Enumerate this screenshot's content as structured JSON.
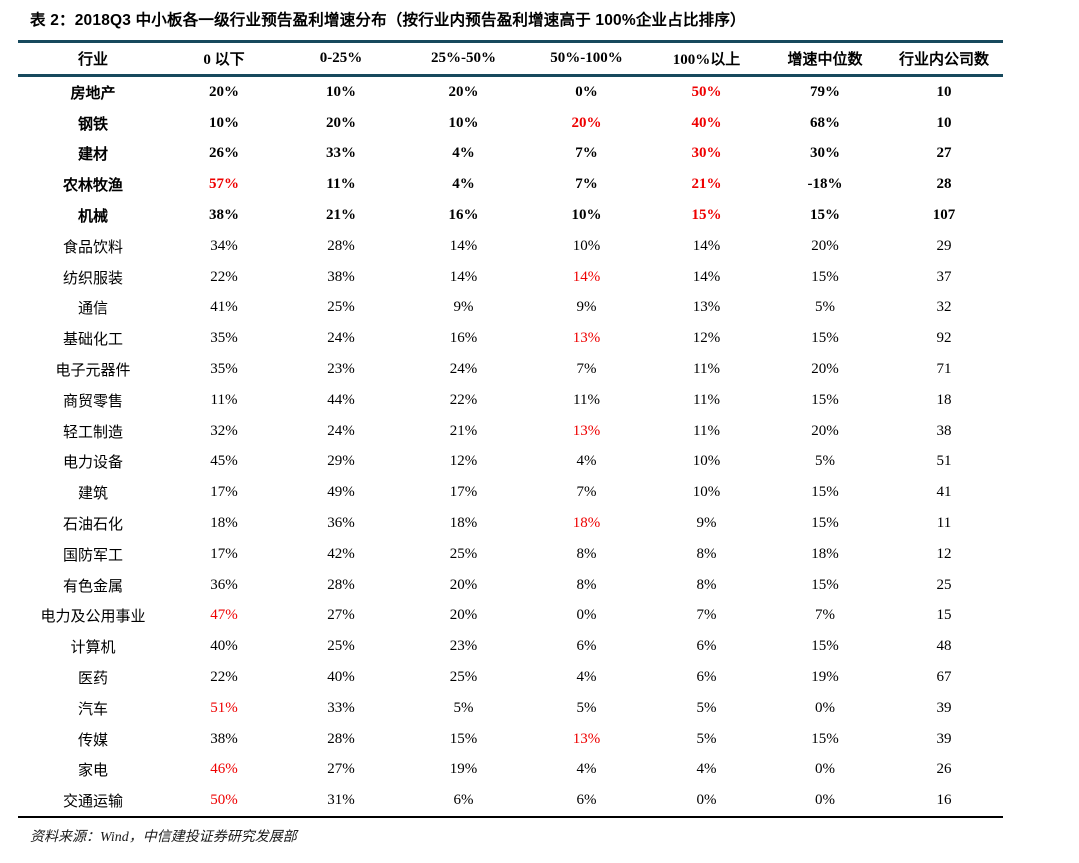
{
  "title": "表 2：2018Q3 中小板各一级行业预告盈利增速分布（按行业内预告盈利增速高于 100%企业占比排序）",
  "source": "资料来源：Wind，中信建投证券研究发展部",
  "colors": {
    "accent_line": "#17495d",
    "highlight_red": "#ee0000",
    "bottom_line": "#000000"
  },
  "chart_data": {
    "type": "table",
    "title": "2018Q3 中小板各一级行业预告盈利增速分布",
    "sort_note": "按行业内预告盈利增速高于 100%企业占比排序",
    "headers": [
      "行业",
      "0 以下",
      "0-25%",
      "25%-50%",
      "50%-100%",
      "100%以上",
      "增速中位数",
      "行业内公司数"
    ],
    "rows": [
      {
        "industry": "房地产",
        "values": [
          "20%",
          "10%",
          "20%",
          "0%",
          "50%",
          "79%",
          "10"
        ],
        "bold": true,
        "red": [
          4
        ]
      },
      {
        "industry": "钢铁",
        "values": [
          "10%",
          "20%",
          "10%",
          "20%",
          "40%",
          "68%",
          "10"
        ],
        "bold": true,
        "red": [
          3,
          4
        ]
      },
      {
        "industry": "建材",
        "values": [
          "26%",
          "33%",
          "4%",
          "7%",
          "30%",
          "30%",
          "27"
        ],
        "bold": true,
        "red": [
          4
        ]
      },
      {
        "industry": "农林牧渔",
        "values": [
          "57%",
          "11%",
          "4%",
          "7%",
          "21%",
          "-18%",
          "28"
        ],
        "bold": true,
        "red": [
          0,
          4
        ]
      },
      {
        "industry": "机械",
        "values": [
          "38%",
          "21%",
          "16%",
          "10%",
          "15%",
          "15%",
          "107"
        ],
        "bold": true,
        "red": [
          4
        ]
      },
      {
        "industry": "食品饮料",
        "values": [
          "34%",
          "28%",
          "14%",
          "10%",
          "14%",
          "20%",
          "29"
        ],
        "bold": false,
        "red": []
      },
      {
        "industry": "纺织服装",
        "values": [
          "22%",
          "38%",
          "14%",
          "14%",
          "14%",
          "15%",
          "37"
        ],
        "bold": false,
        "red": [
          3
        ]
      },
      {
        "industry": "通信",
        "values": [
          "41%",
          "25%",
          "9%",
          "9%",
          "13%",
          "5%",
          "32"
        ],
        "bold": false,
        "red": []
      },
      {
        "industry": "基础化工",
        "values": [
          "35%",
          "24%",
          "16%",
          "13%",
          "12%",
          "15%",
          "92"
        ],
        "bold": false,
        "red": [
          3
        ]
      },
      {
        "industry": "电子元器件",
        "values": [
          "35%",
          "23%",
          "24%",
          "7%",
          "11%",
          "20%",
          "71"
        ],
        "bold": false,
        "red": []
      },
      {
        "industry": "商贸零售",
        "values": [
          "11%",
          "44%",
          "22%",
          "11%",
          "11%",
          "15%",
          "18"
        ],
        "bold": false,
        "red": []
      },
      {
        "industry": "轻工制造",
        "values": [
          "32%",
          "24%",
          "21%",
          "13%",
          "11%",
          "20%",
          "38"
        ],
        "bold": false,
        "red": [
          3
        ]
      },
      {
        "industry": "电力设备",
        "values": [
          "45%",
          "29%",
          "12%",
          "4%",
          "10%",
          "5%",
          "51"
        ],
        "bold": false,
        "red": []
      },
      {
        "industry": "建筑",
        "values": [
          "17%",
          "49%",
          "17%",
          "7%",
          "10%",
          "15%",
          "41"
        ],
        "bold": false,
        "red": []
      },
      {
        "industry": "石油石化",
        "values": [
          "18%",
          "36%",
          "18%",
          "18%",
          "9%",
          "15%",
          "11"
        ],
        "bold": false,
        "red": [
          3
        ]
      },
      {
        "industry": "国防军工",
        "values": [
          "17%",
          "42%",
          "25%",
          "8%",
          "8%",
          "18%",
          "12"
        ],
        "bold": false,
        "red": []
      },
      {
        "industry": "有色金属",
        "values": [
          "36%",
          "28%",
          "20%",
          "8%",
          "8%",
          "15%",
          "25"
        ],
        "bold": false,
        "red": []
      },
      {
        "industry": "电力及公用事业",
        "values": [
          "47%",
          "27%",
          "20%",
          "0%",
          "7%",
          "7%",
          "15"
        ],
        "bold": false,
        "red": [
          0
        ]
      },
      {
        "industry": "计算机",
        "values": [
          "40%",
          "25%",
          "23%",
          "6%",
          "6%",
          "15%",
          "48"
        ],
        "bold": false,
        "red": []
      },
      {
        "industry": "医药",
        "values": [
          "22%",
          "40%",
          "25%",
          "4%",
          "6%",
          "19%",
          "67"
        ],
        "bold": false,
        "red": []
      },
      {
        "industry": "汽车",
        "values": [
          "51%",
          "33%",
          "5%",
          "5%",
          "5%",
          "0%",
          "39"
        ],
        "bold": false,
        "red": [
          0
        ]
      },
      {
        "industry": "传媒",
        "values": [
          "38%",
          "28%",
          "15%",
          "13%",
          "5%",
          "15%",
          "39"
        ],
        "bold": false,
        "red": [
          3
        ]
      },
      {
        "industry": "家电",
        "values": [
          "46%",
          "27%",
          "19%",
          "4%",
          "4%",
          "0%",
          "26"
        ],
        "bold": false,
        "red": [
          0
        ]
      },
      {
        "industry": "交通运输",
        "values": [
          "50%",
          "31%",
          "6%",
          "6%",
          "0%",
          "0%",
          "16"
        ],
        "bold": false,
        "red": [
          0
        ]
      }
    ]
  }
}
